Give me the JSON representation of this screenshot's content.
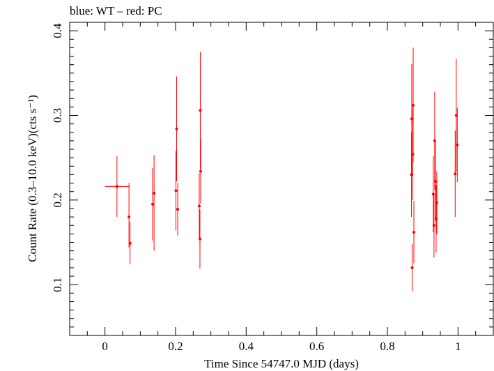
{
  "header": {
    "title": "blue: WT – red: PC"
  },
  "colors": {
    "pc": "#ff0000",
    "wt": "#0000ff",
    "axis": "#000000"
  },
  "chart_data": {
    "type": "scatter",
    "title": "blue: WT – red: PC",
    "xlabel": "Time Since 54747.0 MJD (days)",
    "ylabel": "Count Rate (0.3–10.0 keV)(cts s⁻¹)",
    "xlim": [
      -0.1,
      1.1
    ],
    "ylim": [
      0.04,
      0.41
    ],
    "xticks": [
      0,
      0.2,
      0.4,
      0.6,
      0.8,
      1
    ],
    "xtick_labels": [
      "0",
      "0.2",
      "0.4",
      "0.6",
      "0.8",
      "1"
    ],
    "yticks": [
      0.1,
      0.2,
      0.3,
      0.4
    ],
    "ytick_labels": [
      "0.1",
      "0.2",
      "0.3",
      "0.4"
    ],
    "series": [
      {
        "name": "PC",
        "color": "#ff0000",
        "points": [
          {
            "x": 0.034,
            "y": 0.216,
            "xerr": 0.034,
            "ylo": 0.18,
            "yhi": 0.252
          },
          {
            "x": 0.068,
            "y": 0.18,
            "xerr": 0.003,
            "ylo": 0.144,
            "yhi": 0.22
          },
          {
            "x": 0.071,
            "y": 0.149,
            "xerr": 0.002,
            "ylo": 0.124,
            "yhi": 0.174
          },
          {
            "x": 0.135,
            "y": 0.195,
            "xerr": 0.002,
            "ylo": 0.152,
            "yhi": 0.238
          },
          {
            "x": 0.139,
            "y": 0.208,
            "xerr": 0.002,
            "ylo": 0.14,
            "yhi": 0.253
          },
          {
            "x": 0.201,
            "y": 0.211,
            "xerr": 0.002,
            "ylo": 0.164,
            "yhi": 0.258
          },
          {
            "x": 0.203,
            "y": 0.284,
            "xerr": 0.002,
            "ylo": 0.222,
            "yhi": 0.346
          },
          {
            "x": 0.206,
            "y": 0.189,
            "xerr": 0.002,
            "ylo": 0.158,
            "yhi": 0.22
          },
          {
            "x": 0.267,
            "y": 0.193,
            "xerr": 0.002,
            "ylo": 0.155,
            "yhi": 0.232
          },
          {
            "x": 0.269,
            "y": 0.154,
            "xerr": 0.002,
            "ylo": 0.119,
            "yhi": 0.189
          },
          {
            "x": 0.27,
            "y": 0.306,
            "xerr": 0.002,
            "ylo": 0.237,
            "yhi": 0.375
          },
          {
            "x": 0.271,
            "y": 0.234,
            "xerr": 0.002,
            "ylo": 0.196,
            "yhi": 0.272
          },
          {
            "x": 0.868,
            "y": 0.23,
            "xerr": 0.002,
            "ylo": 0.18,
            "yhi": 0.28
          },
          {
            "x": 0.869,
            "y": 0.296,
            "xerr": 0.002,
            "ylo": 0.232,
            "yhi": 0.361
          },
          {
            "x": 0.87,
            "y": 0.12,
            "xerr": 0.002,
            "ylo": 0.092,
            "yhi": 0.148
          },
          {
            "x": 0.872,
            "y": 0.254,
            "xerr": 0.002,
            "ylo": 0.2,
            "yhi": 0.31
          },
          {
            "x": 0.873,
            "y": 0.312,
            "xerr": 0.002,
            "ylo": 0.245,
            "yhi": 0.38
          },
          {
            "x": 0.875,
            "y": 0.162,
            "xerr": 0.002,
            "ylo": 0.125,
            "yhi": 0.199
          },
          {
            "x": 0.93,
            "y": 0.207,
            "xerr": 0.002,
            "ylo": 0.162,
            "yhi": 0.252
          },
          {
            "x": 0.932,
            "y": 0.17,
            "xerr": 0.002,
            "ylo": 0.132,
            "yhi": 0.208
          },
          {
            "x": 0.934,
            "y": 0.27,
            "xerr": 0.002,
            "ylo": 0.212,
            "yhi": 0.328
          },
          {
            "x": 0.936,
            "y": 0.222,
            "xerr": 0.002,
            "ylo": 0.175,
            "yhi": 0.27
          },
          {
            "x": 0.938,
            "y": 0.178,
            "xerr": 0.002,
            "ylo": 0.138,
            "yhi": 0.218
          },
          {
            "x": 0.94,
            "y": 0.197,
            "xerr": 0.002,
            "ylo": 0.16,
            "yhi": 0.234
          },
          {
            "x": 0.992,
            "y": 0.231,
            "xerr": 0.002,
            "ylo": 0.18,
            "yhi": 0.282
          },
          {
            "x": 0.995,
            "y": 0.3,
            "xerr": 0.002,
            "ylo": 0.233,
            "yhi": 0.367
          },
          {
            "x": 0.998,
            "y": 0.265,
            "xerr": 0.002,
            "ylo": 0.221,
            "yhi": 0.309
          }
        ]
      }
    ]
  }
}
